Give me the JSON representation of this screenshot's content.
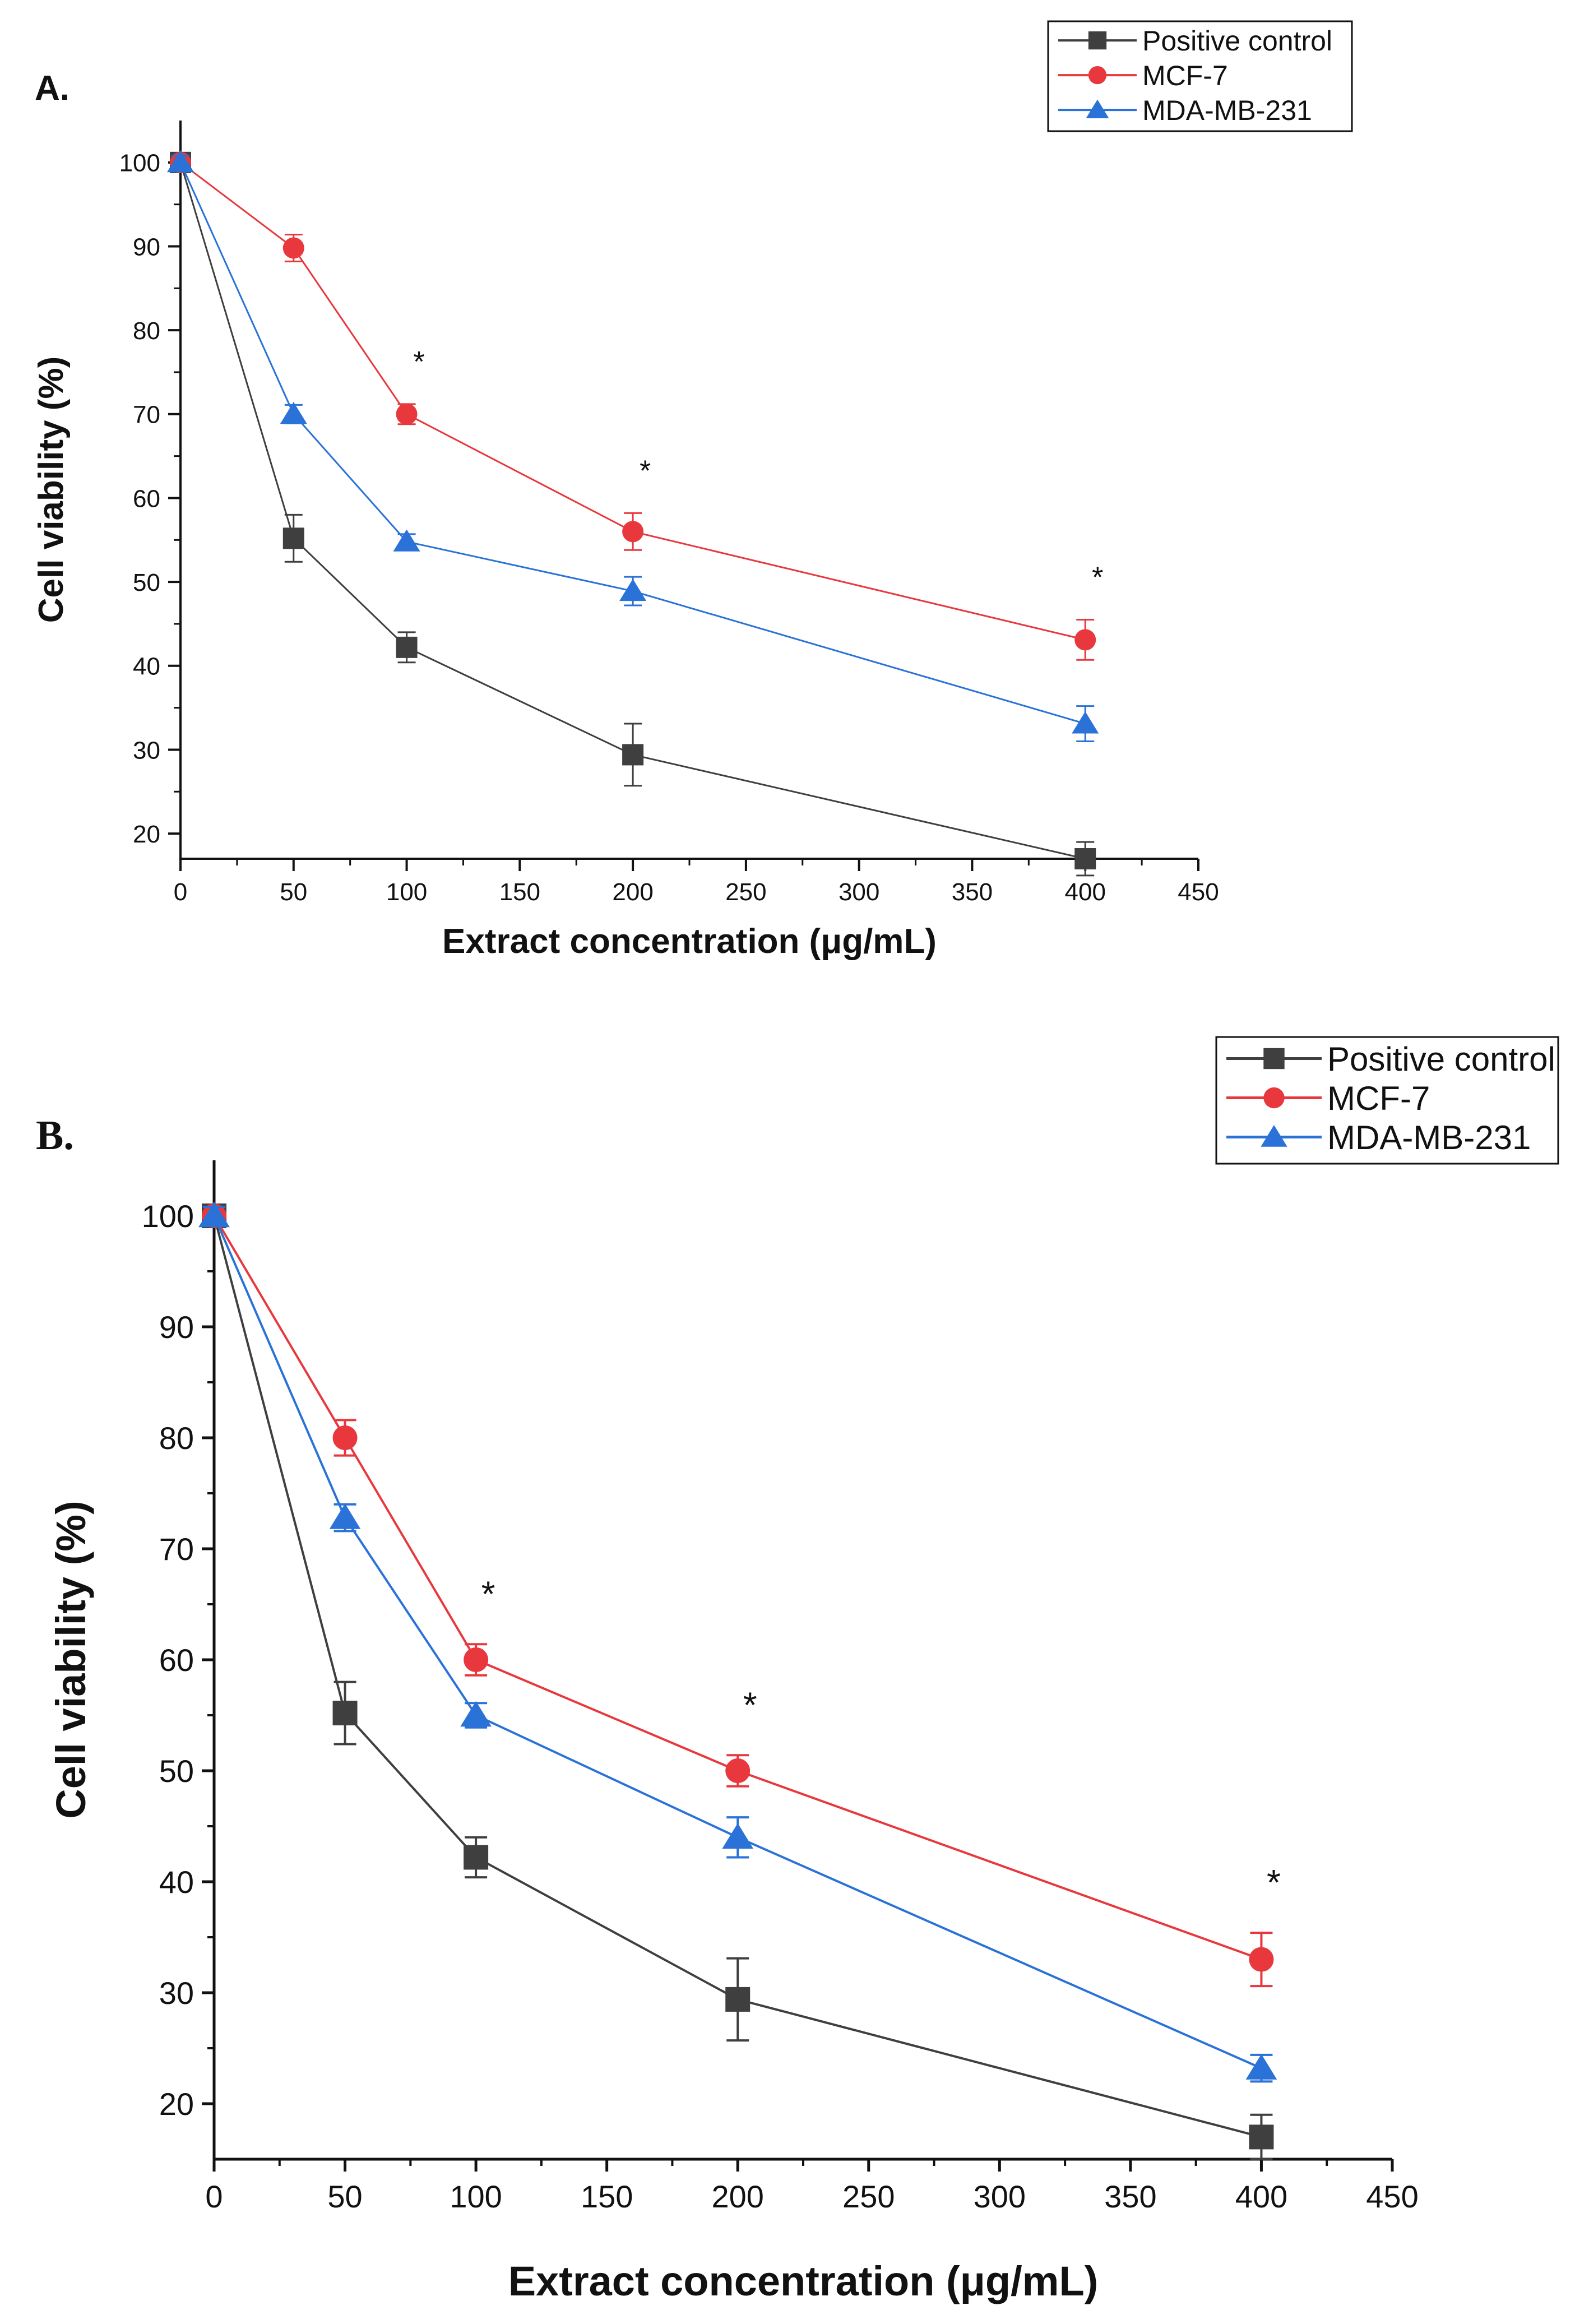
{
  "chart_data": [
    {
      "type": "line",
      "panel_label": "A.",
      "xlabel": "Extract concentration (μg/mL)",
      "ylabel": "Cell viability (%)",
      "xlim": [
        0,
        450
      ],
      "ylim": [
        17,
        105
      ],
      "x_ticks": [
        "0",
        "50",
        "100",
        "150",
        "200",
        "250",
        "300",
        "350",
        "400",
        "450"
      ],
      "y_ticks": [
        "20",
        "30",
        "40",
        "50",
        "60",
        "70",
        "80",
        "90",
        "100"
      ],
      "x": [
        0,
        50,
        100,
        200,
        400
      ],
      "series": [
        {
          "name": "Positive control",
          "color": "#3f3f3f",
          "marker": "square",
          "values": [
            100,
            55.2,
            42.2,
            29.4,
            17
          ],
          "errors": [
            0.8,
            2.8,
            1.8,
            3.7,
            2.0
          ]
        },
        {
          "name": "MCF-7",
          "color": "#e8383d",
          "marker": "circle",
          "values": [
            100,
            89.8,
            70,
            56,
            43.1
          ],
          "errors": [
            0.8,
            1.6,
            1.2,
            2.2,
            2.4
          ]
        },
        {
          "name": "MDA-MB-231",
          "color": "#2a72d8",
          "marker": "triangle",
          "values": [
            100,
            70,
            54.8,
            48.9,
            33.1
          ],
          "errors": [
            0.8,
            1.1,
            0.9,
            1.7,
            2.1
          ]
        }
      ],
      "annotations": [
        {
          "x": 100,
          "text": "*"
        },
        {
          "x": 200,
          "text": "*"
        },
        {
          "x": 400,
          "text": "*"
        }
      ],
      "legend_position": "top-right"
    },
    {
      "type": "line",
      "panel_label": "B.",
      "xlabel": "Extract concentration (μg/mL)",
      "ylabel": "Cell viability (%)",
      "xlim": [
        0,
        450
      ],
      "ylim": [
        15,
        105
      ],
      "x_ticks": [
        "0",
        "50",
        "100",
        "150",
        "200",
        "250",
        "300",
        "350",
        "400",
        "450"
      ],
      "y_ticks": [
        "20",
        "30",
        "40",
        "50",
        "60",
        "70",
        "80",
        "90",
        "100"
      ],
      "x": [
        0,
        50,
        100,
        200,
        400
      ],
      "series": [
        {
          "name": "Positive control",
          "color": "#3f3f3f",
          "marker": "square",
          "values": [
            100,
            55.2,
            42.2,
            29.4,
            17
          ],
          "errors": [
            0.8,
            2.8,
            1.8,
            3.7,
            2.0
          ]
        },
        {
          "name": "MCF-7",
          "color": "#e8383d",
          "marker": "circle",
          "values": [
            100,
            80,
            60,
            50,
            33
          ],
          "errors": [
            0.8,
            1.6,
            1.4,
            1.4,
            2.4
          ]
        },
        {
          "name": "MDA-MB-231",
          "color": "#2a72d8",
          "marker": "triangle",
          "values": [
            100,
            72.8,
            55,
            44,
            23.2
          ],
          "errors": [
            0.8,
            1.2,
            1.1,
            1.8,
            1.2
          ]
        }
      ],
      "annotations": [
        {
          "x": 100,
          "text": "*"
        },
        {
          "x": 200,
          "text": "*"
        },
        {
          "x": 400,
          "text": "*"
        }
      ],
      "legend_position": "top-right"
    }
  ]
}
